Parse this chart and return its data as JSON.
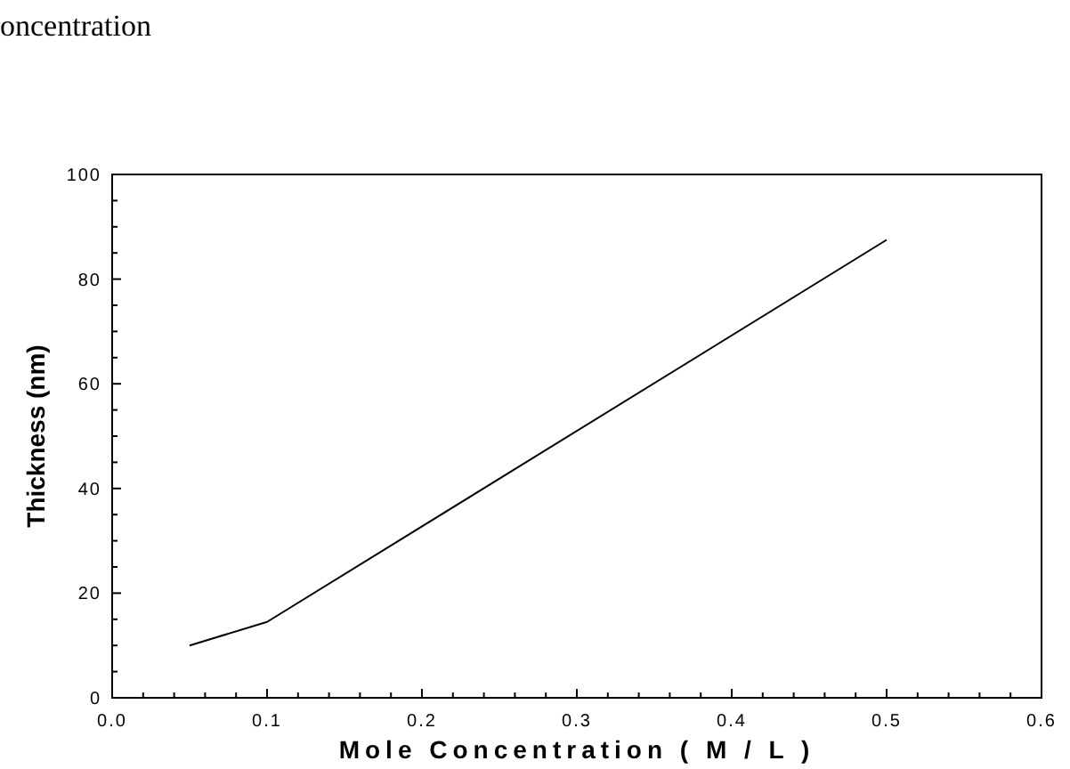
{
  "chart_data": {
    "type": "line",
    "xlabel": "Mole Concentration ( M / L )",
    "ylabel": "Thickness (nm)",
    "annotations": [
      "oncentration"
    ],
    "x": [
      0.05,
      0.1,
      0.5
    ],
    "series": [
      {
        "color": "#000000",
        "values": [
          10,
          14.5,
          87.5
        ]
      }
    ],
    "xlim": [
      0,
      0.6
    ],
    "ylim": [
      0,
      100
    ],
    "xticks": [
      {
        "value": 0,
        "label": "0.0"
      },
      {
        "value": 0.02,
        "label": null
      },
      {
        "value": 0.04,
        "label": null
      },
      {
        "value": 0.06,
        "label": null
      },
      {
        "value": 0.08,
        "label": null
      },
      0.1,
      {
        "value": 0.12,
        "label": null
      },
      {
        "value": 0.14,
        "label": null
      },
      {
        "value": 0.16,
        "label": null
      },
      {
        "value": 0.18,
        "label": null
      },
      0.2,
      {
        "value": 0.22,
        "label": null
      },
      {
        "value": 0.24,
        "label": null
      },
      {
        "value": 0.26,
        "label": null
      },
      {
        "value": 0.28,
        "label": null
      },
      0.3,
      {
        "value": 0.32,
        "label": null
      },
      {
        "value": 0.34,
        "label": null
      },
      {
        "value": 0.36,
        "label": null
      },
      {
        "value": 0.38,
        "label": null
      },
      0.4,
      {
        "value": 0.42,
        "label": null
      },
      {
        "value": 0.44,
        "label": null
      },
      {
        "value": 0.46,
        "label": null
      },
      {
        "value": 0.48,
        "label": null
      },
      0.5,
      {
        "value": 0.52,
        "label": null
      },
      {
        "value": 0.54,
        "label": null
      },
      {
        "value": 0.56,
        "label": null
      },
      {
        "value": 0.58,
        "label": null
      },
      0.6
    ],
    "yticks": [
      0,
      {
        "value": 5,
        "label": null
      },
      {
        "value": 10,
        "label": null
      },
      {
        "value": 15,
        "label": null
      },
      20,
      {
        "value": 25,
        "label": null
      },
      {
        "value": 30,
        "label": null
      },
      {
        "value": 35,
        "label": null
      },
      40,
      {
        "value": 45,
        "label": null
      },
      {
        "value": 50,
        "label": null
      },
      {
        "value": 55,
        "label": null
      },
      60,
      {
        "value": 65,
        "label": null
      },
      {
        "value": 70,
        "label": null
      },
      {
        "value": 75,
        "label": null
      },
      80,
      {
        "value": 85,
        "label": null
      },
      {
        "value": 90,
        "label": null
      },
      {
        "value": 95,
        "label": null
      },
      100
    ],
    "grid": false,
    "marker": "none",
    "line_style": "solid"
  }
}
